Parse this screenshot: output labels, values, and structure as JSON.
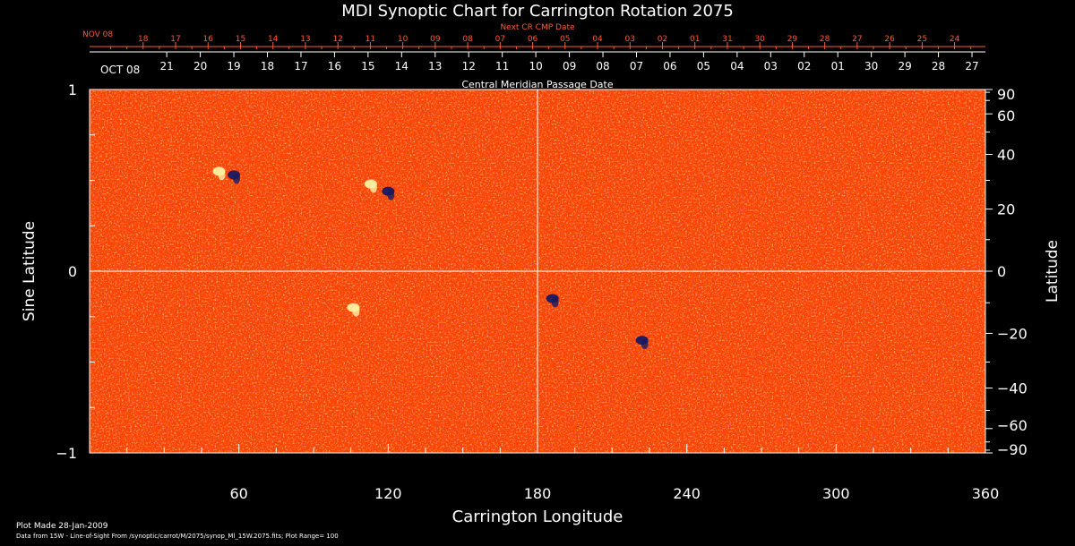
{
  "chart_data": {
    "type": "heatmap",
    "title": "MDI Synoptic Chart for Carrington Rotation 2075",
    "xlabel": "Carrington Longitude",
    "ylabel_left": "Sine Latitude",
    "ylabel_right": "Latitude",
    "xlim": [
      0,
      360
    ],
    "ylim_left": [
      -1,
      1
    ],
    "x_ticks": [
      60,
      120,
      180,
      240,
      300,
      360
    ],
    "y_ticks_left": [
      1,
      0,
      -1
    ],
    "y_ticks_right": [
      90,
      60,
      40,
      20,
      0,
      -20,
      -40,
      -60,
      -90
    ],
    "next_cr_axis_label": "Next CR CMP Date",
    "next_cr_month": "NOV 08",
    "next_cr_days": [
      "18",
      "17",
      "16",
      "15",
      "14",
      "13",
      "12",
      "11",
      "10",
      "09",
      "08",
      "07",
      "06",
      "05",
      "04",
      "03",
      "02",
      "01",
      "31",
      "30",
      "29",
      "28",
      "27",
      "26",
      "25",
      "24"
    ],
    "cmp_axis_label": "Central Meridian Passage Date",
    "cmp_month": "OCT 08",
    "cmp_days": [
      "21",
      "20",
      "19",
      "18",
      "17",
      "16",
      "15",
      "14",
      "13",
      "12",
      "11",
      "10",
      "09",
      "08",
      "07",
      "06",
      "05",
      "04",
      "03",
      "02",
      "01",
      "30",
      "29",
      "28",
      "27"
    ],
    "reference_lines": {
      "longitude": 180,
      "sine_latitude": 0
    },
    "colors": {
      "background": "#ff4500",
      "positive": "#fff0a0",
      "negative": "#1a1a60",
      "top_axis": "#ff5a3a",
      "text": "#ffffff"
    },
    "active_regions": [
      {
        "lon": 52,
        "sinlat": 0.55,
        "polarity": "positive"
      },
      {
        "lon": 58,
        "sinlat": 0.53,
        "polarity": "negative"
      },
      {
        "lon": 113,
        "sinlat": 0.48,
        "polarity": "positive"
      },
      {
        "lon": 120,
        "sinlat": 0.44,
        "polarity": "negative"
      },
      {
        "lon": 106,
        "sinlat": -0.2,
        "polarity": "positive"
      },
      {
        "lon": 186,
        "sinlat": -0.15,
        "polarity": "negative"
      },
      {
        "lon": 222,
        "sinlat": -0.38,
        "polarity": "negative"
      }
    ]
  },
  "footer": {
    "plot_made": "Plot Made 28-Jan-2009",
    "data_from": "Data from 15W - Line-of-Sight From /synoptic/carrot/M/2075/synop_Ml_15W.2075.fits; Plot Range=  100"
  }
}
